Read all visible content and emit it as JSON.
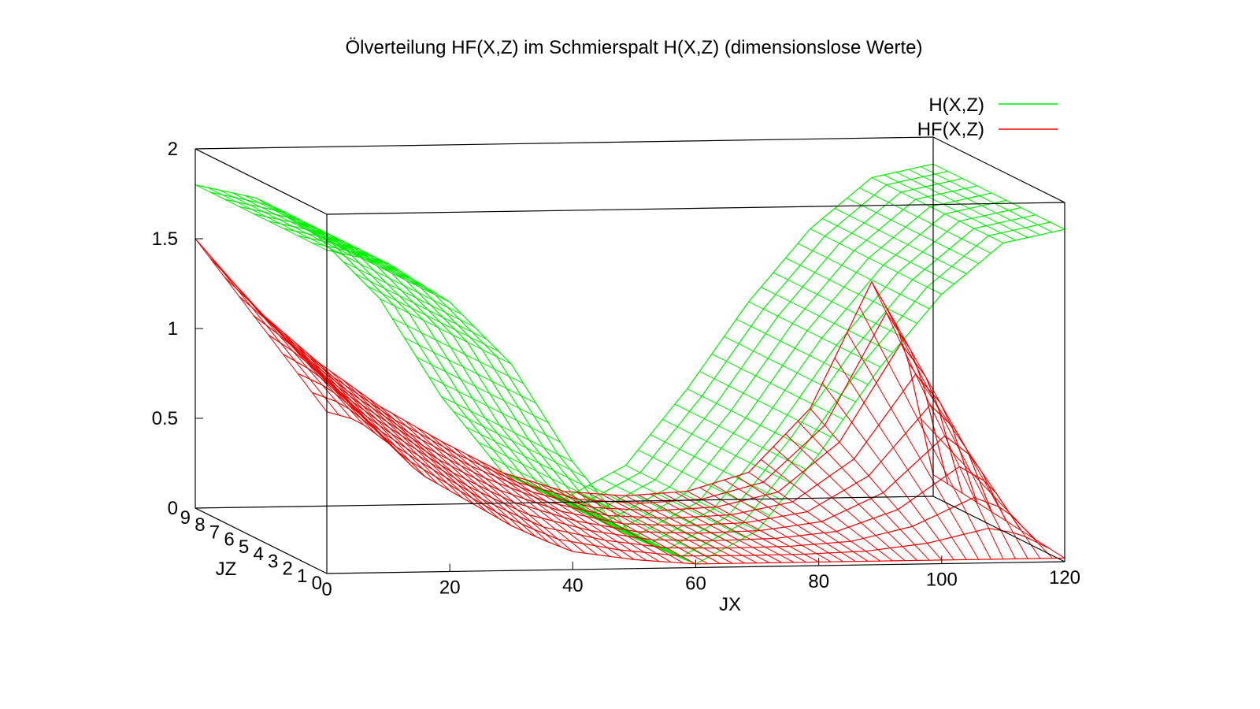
{
  "chart_data": {
    "type": "surface-3d-wireframe",
    "title": "Ölverteilung HF(X,Z) im Schmierspalt H(X,Z) (dimensionslose Werte)",
    "xlabel": "JX",
    "zlabel": "JZ",
    "ylabel": "",
    "xlim": [
      0,
      120
    ],
    "zlim": [
      0,
      9
    ],
    "ylim": [
      0,
      2
    ],
    "x_ticks": [
      "0",
      "20",
      "40",
      "60",
      "80",
      "100",
      "120"
    ],
    "z_ticks": [
      "0",
      "1",
      "2",
      "3",
      "4",
      "5",
      "6",
      "7",
      "8",
      "9"
    ],
    "y_ticks": [
      "0",
      "0.5",
      "1",
      "1.5",
      "2"
    ],
    "legend_position": "top-right",
    "series": [
      {
        "name": "H(X,Z)",
        "color": "#00ee00",
        "profile_at_JZ0": {
          "x": [
            0,
            10,
            20,
            30,
            40,
            50,
            60,
            70,
            80,
            90,
            100,
            110,
            120
          ],
          "y": [
            1.8,
            1.72,
            1.5,
            1.15,
            0.6,
            0.17,
            0.02,
            0.2,
            0.62,
            1.1,
            1.5,
            1.78,
            1.85
          ]
        },
        "profile_at_JZ9": {
          "x": [
            0,
            10,
            20,
            30,
            40,
            50,
            60,
            70,
            80,
            90,
            100,
            110,
            120
          ],
          "y": [
            1.8,
            1.72,
            1.5,
            1.15,
            0.6,
            0.17,
            0.02,
            0.2,
            0.62,
            1.1,
            1.5,
            1.78,
            1.85
          ]
        }
      },
      {
        "name": "HF(X,Z)",
        "color": "#ee0000",
        "profile_at_JZ0": {
          "x": [
            0,
            5,
            10,
            15,
            20,
            25,
            30,
            35,
            40,
            50,
            60,
            70,
            80,
            90,
            100,
            110,
            120
          ],
          "y": [
            0.9,
            0.85,
            0.72,
            0.55,
            0.45,
            0.35,
            0.25,
            0.17,
            0.1,
            0.05,
            0.02,
            0.02,
            0.02,
            0.02,
            0.02,
            0.02,
            0.02
          ]
        },
        "profile_at_JZ9": {
          "x": [
            0,
            10,
            20,
            30,
            40,
            50,
            60,
            70,
            80,
            90,
            100,
            110,
            115,
            120
          ],
          "y": [
            1.5,
            1.1,
            0.8,
            0.55,
            0.35,
            0.17,
            0.06,
            0.03,
            0.05,
            0.15,
            0.5,
            1.2,
            0.9,
            0.12
          ]
        }
      }
    ]
  }
}
